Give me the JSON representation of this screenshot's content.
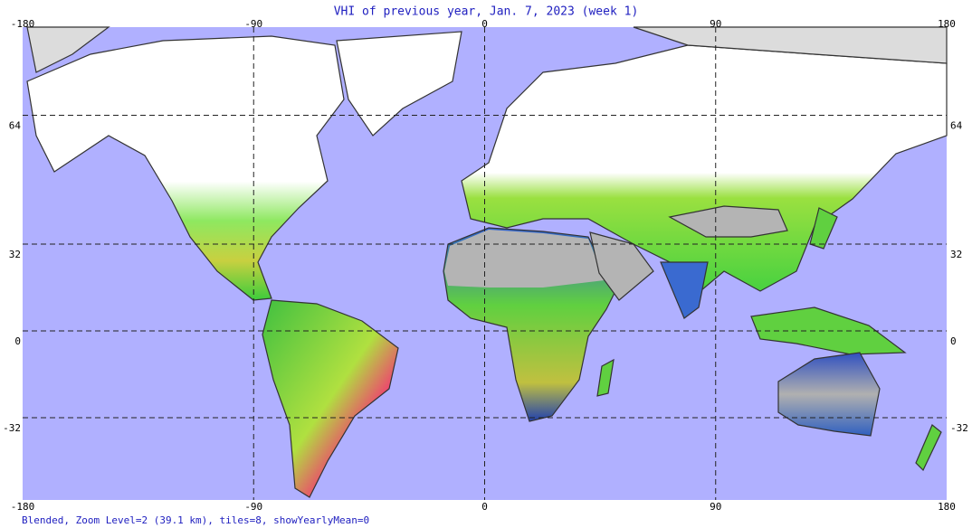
{
  "title": "VHI of previous year, Jan. 7, 2023 (week 1)",
  "map": {
    "lon_ticks": [
      -180,
      -90,
      0,
      90,
      180
    ],
    "lat_ticks": [
      64,
      32,
      0,
      -32
    ]
  },
  "footer": "Blended, Zoom Level=2 (39.1 km), tiles=8, showYearlyMean=0"
}
